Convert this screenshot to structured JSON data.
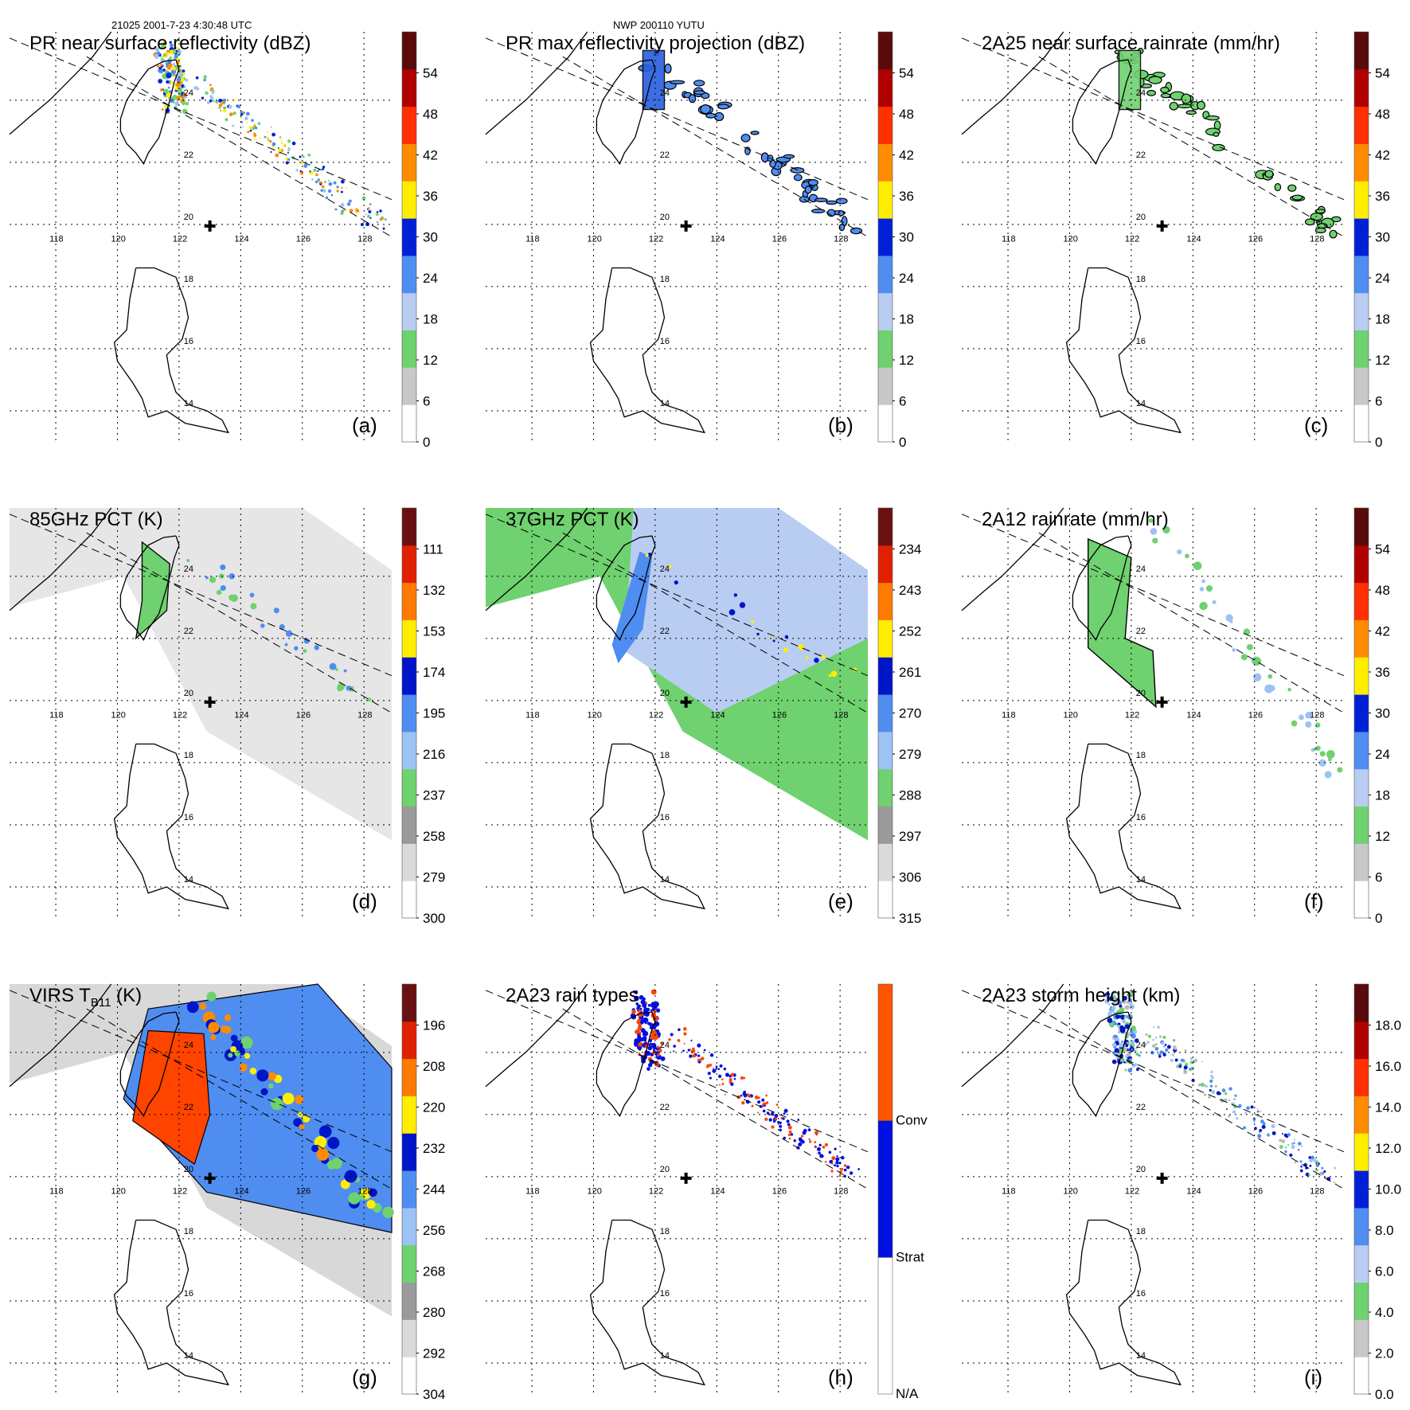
{
  "header": {
    "left": "21025 2001-7-23 4:30:48 UTC",
    "center": "NWP 200110 YUTU"
  },
  "lon_labels": [
    "118",
    "120",
    "122",
    "124",
    "126",
    "128"
  ],
  "lat_labels": [
    "24",
    "22",
    "20",
    "18",
    "16",
    "14"
  ],
  "colors": {
    "grid": "#000000",
    "coast": "#000000"
  },
  "chart_data": [
    {
      "id": "a",
      "type": "heatmap",
      "title": "PR near surface reflectivity (dBZ)",
      "panel_label": "(a)",
      "cbar": {
        "type": "continuous",
        "ticks": [
          "0",
          "6",
          "12",
          "18",
          "24",
          "30",
          "36",
          "42",
          "48",
          "54"
        ]
      },
      "swath": "pr",
      "field": "pr_dots"
    },
    {
      "id": "b",
      "type": "heatmap",
      "title": "PR max reflectivity projection (dBZ)",
      "panel_label": "(b)",
      "cbar": {
        "type": "continuous",
        "ticks": [
          "0",
          "6",
          "12",
          "18",
          "24",
          "30",
          "36",
          "42",
          "48",
          "54"
        ]
      },
      "swath": "pr",
      "field": "pr_contour"
    },
    {
      "id": "c",
      "type": "heatmap",
      "title": "2A25 near surface rainrate (mm/hr)",
      "panel_label": "(c)",
      "cbar": {
        "type": "continuous",
        "ticks": [
          "0",
          "6",
          "12",
          "18",
          "24",
          "30",
          "36",
          "42",
          "48",
          "54"
        ]
      },
      "swath": "pr",
      "field": "rain_contour"
    },
    {
      "id": "d",
      "type": "heatmap",
      "title": "85GHz PCT (K)",
      "panel_label": "(d)",
      "cbar": {
        "type": "continuous",
        "ticks": [
          "300",
          "279",
          "258",
          "237",
          "216",
          "195",
          "174",
          "153",
          "132",
          "111"
        ]
      },
      "swath": "tmi",
      "field": "pct85"
    },
    {
      "id": "e",
      "type": "heatmap",
      "title": "37GHz PCT (K)",
      "panel_label": "(e)",
      "cbar": {
        "type": "continuous",
        "ticks": [
          "315",
          "306",
          "297",
          "288",
          "279",
          "270",
          "261",
          "252",
          "243",
          "234"
        ]
      },
      "swath": "tmi",
      "field": "pct37"
    },
    {
      "id": "f",
      "type": "heatmap",
      "title": "2A12 rainrate (mm/hr)",
      "panel_label": "(f)",
      "cbar": {
        "type": "continuous",
        "ticks": [
          "0",
          "6",
          "12",
          "18",
          "24",
          "30",
          "36",
          "42",
          "48",
          "54"
        ]
      },
      "swath": "tmi",
      "field": "rain12"
    },
    {
      "id": "g",
      "type": "heatmap",
      "title": "VIRS T",
      "title_sub": "B11",
      "title_suffix": " (K)",
      "panel_label": "(g)",
      "cbar": {
        "type": "continuous",
        "ticks": [
          "304",
          "292",
          "280",
          "268",
          "256",
          "244",
          "232",
          "220",
          "208",
          "196"
        ]
      },
      "swath": "tmi",
      "field": "virs"
    },
    {
      "id": "h",
      "type": "heatmap",
      "title": "2A23 rain types",
      "panel_label": "(h)",
      "cbar": {
        "type": "categorical",
        "ticks": [
          "N/A",
          "Strat",
          "Conv"
        ]
      },
      "swath": "pr",
      "field": "raintype"
    },
    {
      "id": "i",
      "type": "heatmap",
      "title": "2A23 storm height (km)",
      "panel_label": "(i)",
      "cbar": {
        "type": "continuous",
        "ticks": [
          "0.0",
          "2.0",
          "4.0",
          "6.0",
          "8.0",
          "10.0",
          "12.0",
          "14.0",
          "16.0",
          "18.0"
        ]
      },
      "swath": "pr",
      "field": "stormh"
    }
  ]
}
